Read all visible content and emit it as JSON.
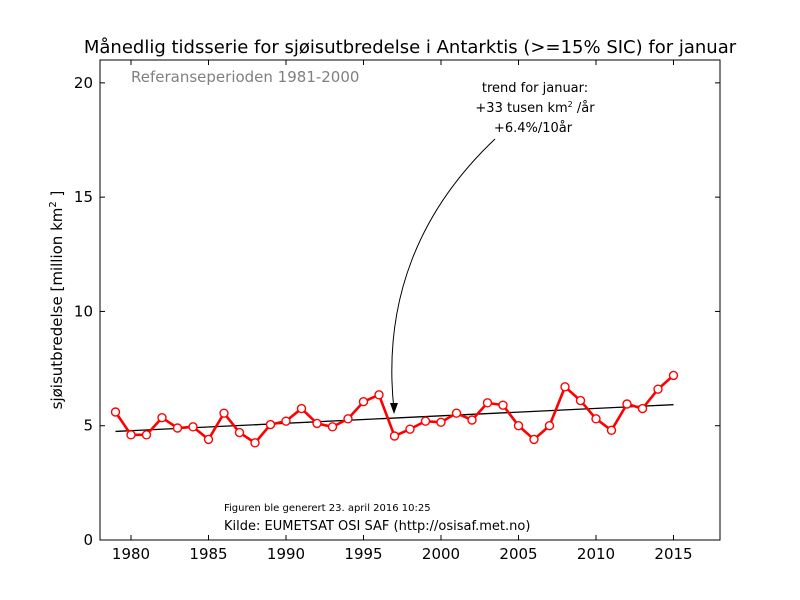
{
  "chart_data": {
    "type": "line",
    "title": "Månedlig tidsserie for sjøisutbredelse i Antarktis (>=15% SIC) for januar",
    "ylabel_main": "sjøisutbredelse [million km",
    "ylabel_sup": "2",
    "ylabel_end": " ]",
    "xlabel": "",
    "reference_text": "Referanseperioden 1981-2000",
    "annotation": {
      "line1": "trend for januar:",
      "line2_pre": "+33 tusen km",
      "line2_sup": "2",
      "line2_post": " /år",
      "line3": "+6.4%/10år"
    },
    "footer": {
      "generated": "Figuren ble generert 23. april 2016 10:25",
      "source": "Kilde: EUMETSAT OSI SAF (http://osisaf.met.no)"
    },
    "xlim": [
      1978,
      2018
    ],
    "ylim": [
      0,
      21
    ],
    "xticks": [
      1980,
      1985,
      1990,
      1995,
      2000,
      2005,
      2010,
      2015
    ],
    "yticks": [
      0,
      5,
      10,
      15,
      20
    ],
    "grid": false,
    "series": [
      {
        "color": "#ff0000",
        "marker": "open-circle",
        "x": [
          1979,
          1980,
          1981,
          1982,
          1983,
          1984,
          1985,
          1986,
          1987,
          1988,
          1989,
          1990,
          1991,
          1992,
          1993,
          1994,
          1995,
          1996,
          1997,
          1998,
          1999,
          2000,
          2001,
          2002,
          2003,
          2004,
          2005,
          2006,
          2007,
          2008,
          2009,
          2010,
          2011,
          2012,
          2013,
          2014,
          2015
        ],
        "y": [
          5.6,
          4.6,
          4.6,
          5.35,
          4.9,
          4.95,
          4.4,
          5.55,
          4.7,
          4.25,
          5.05,
          5.2,
          5.75,
          5.1,
          4.95,
          5.3,
          6.05,
          6.35,
          4.55,
          4.85,
          5.2,
          5.15,
          5.55,
          5.25,
          6.0,
          5.9,
          5.0,
          4.4,
          5.0,
          6.7,
          6.1,
          5.3,
          4.8,
          5.95,
          5.75,
          6.6,
          7.2
        ]
      }
    ],
    "trend": {
      "color": "#000000",
      "x": [
        1979,
        2015
      ],
      "y": [
        4.75,
        5.92
      ]
    }
  }
}
